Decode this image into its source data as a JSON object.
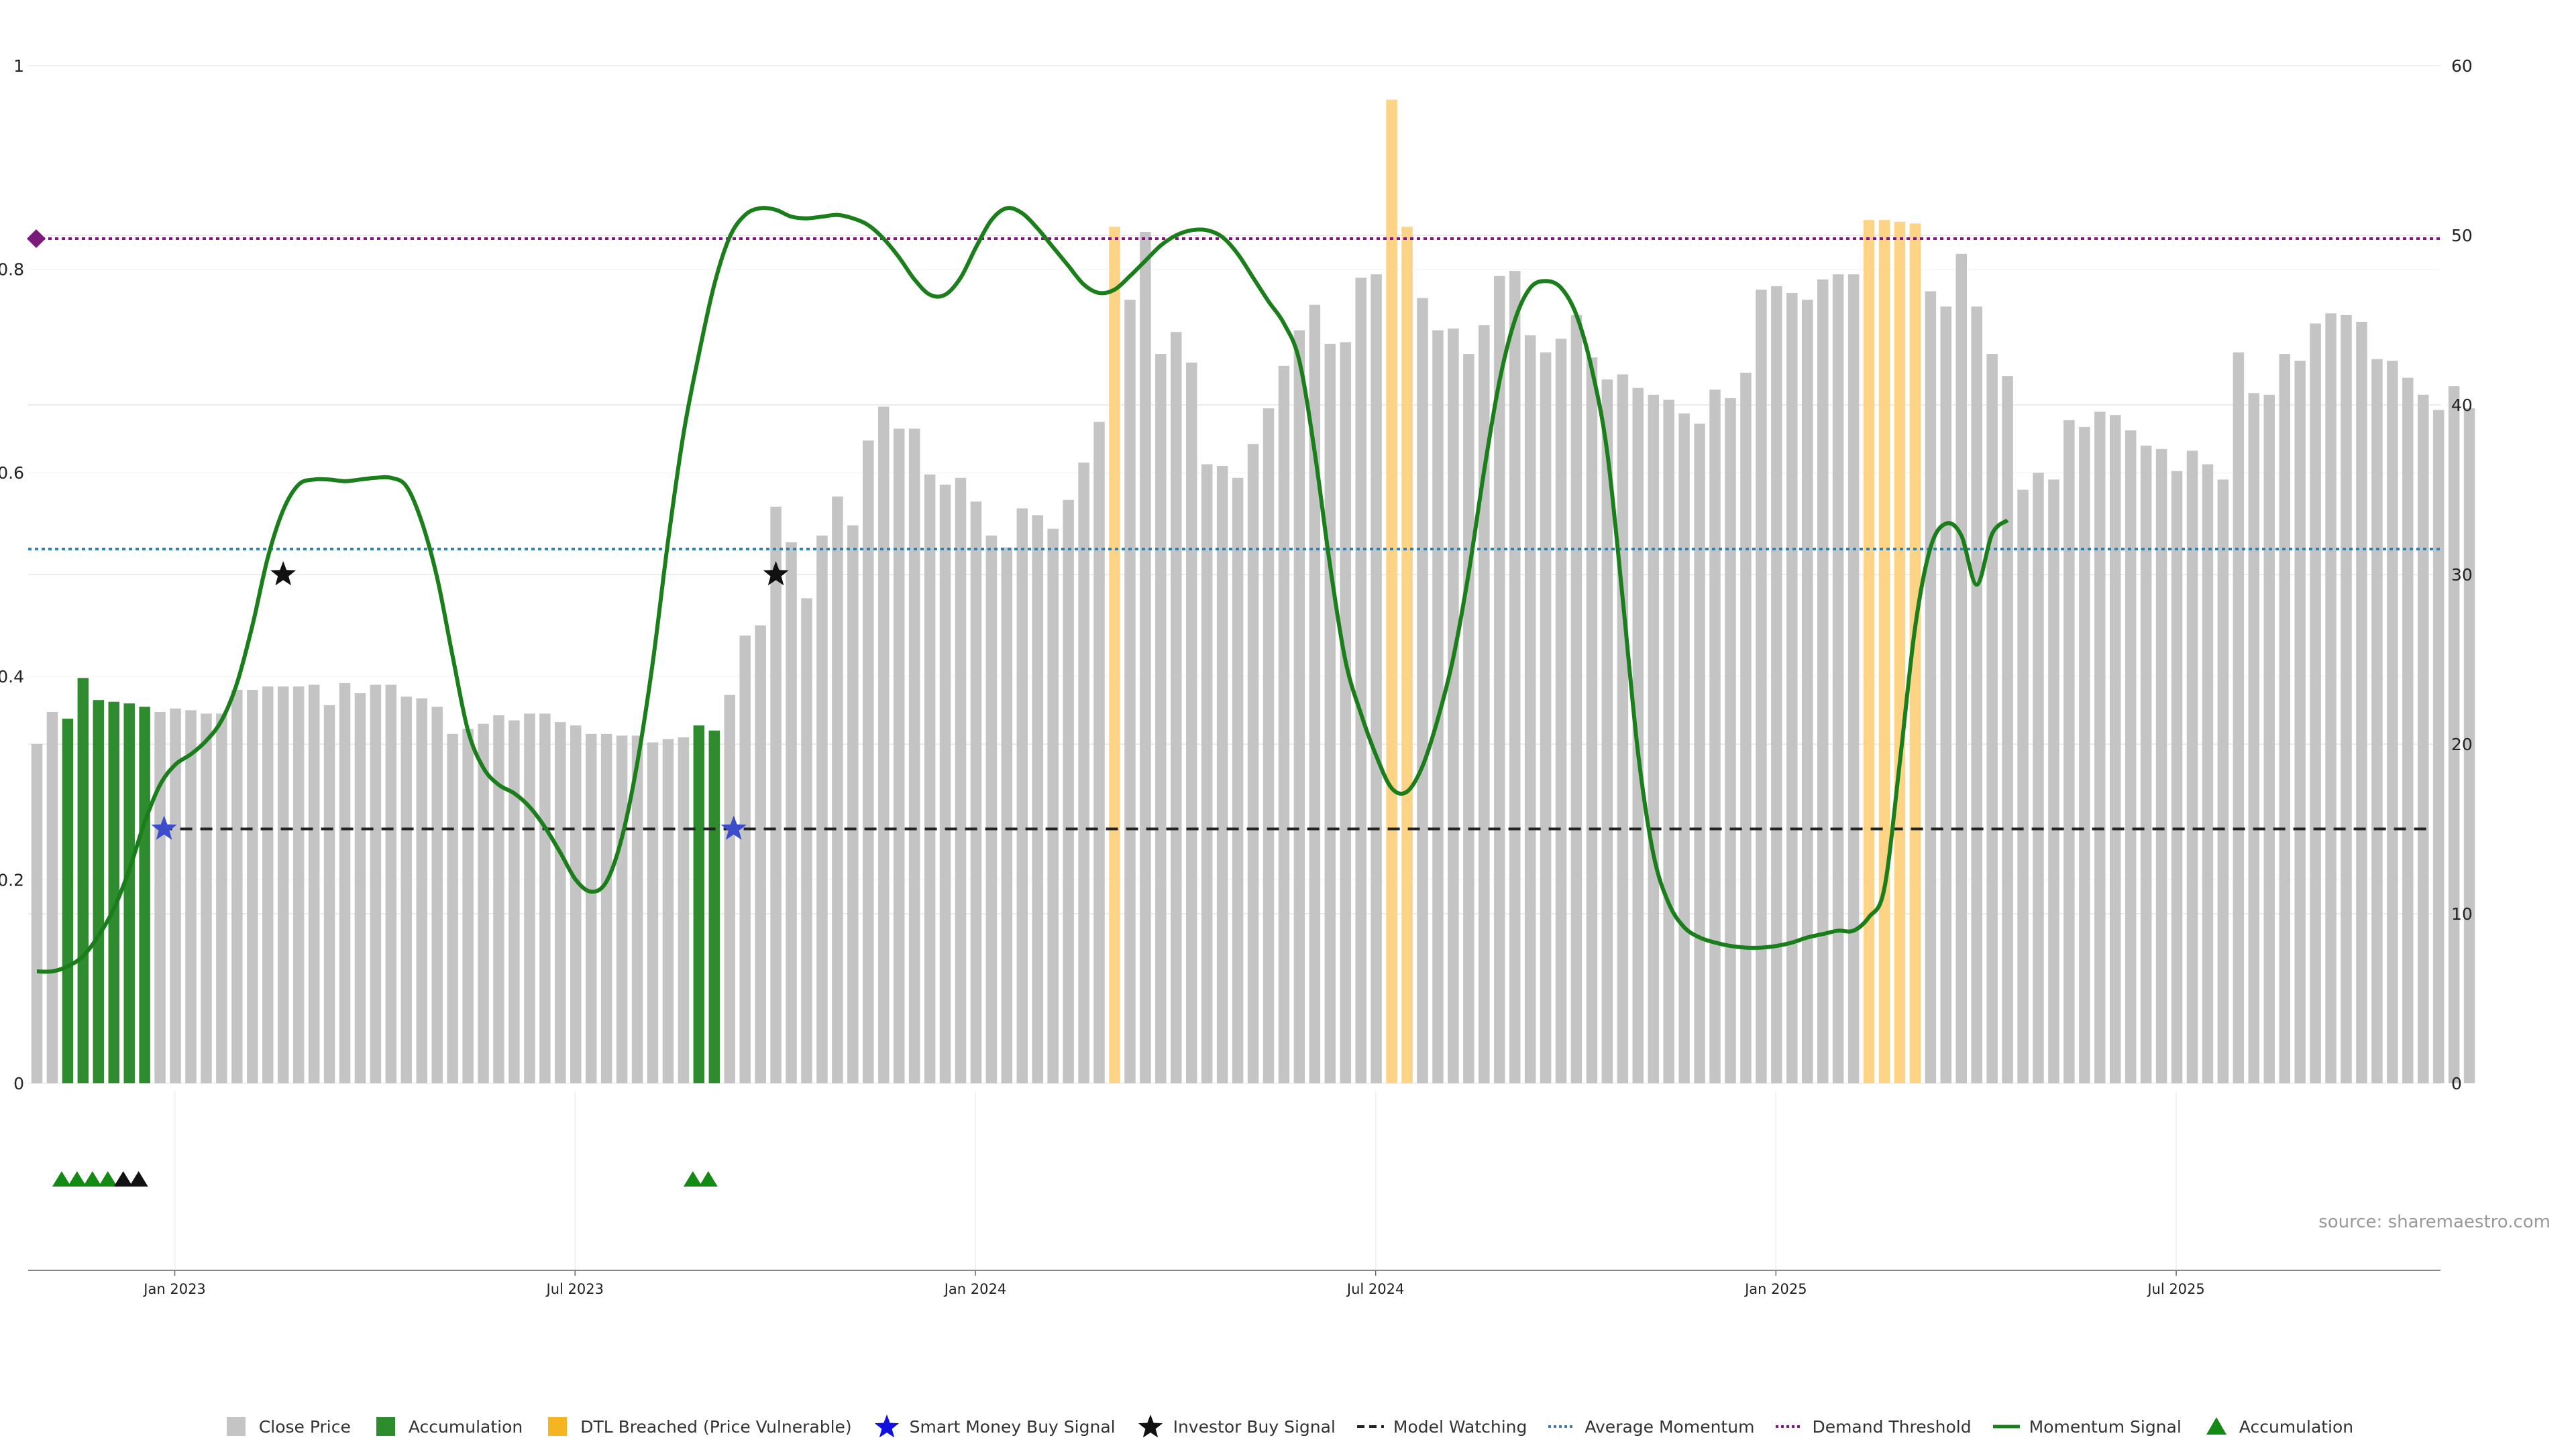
{
  "colors": {
    "close": "#c4c4c4",
    "accumulation": "#2e8b2e",
    "dtl": "#fdd386",
    "momentum": "#1a7f1a",
    "model": "#222222",
    "average": "#3d7ea6",
    "demand": "#7b1a7b",
    "smart_money": "#3c4dcc",
    "investor": "#111111"
  },
  "source": "source: sharemaestro.com",
  "legend": [
    {
      "label": "Close Price",
      "icon": "gray-square-icon"
    },
    {
      "label": "Accumulation",
      "icon": "green-square-icon"
    },
    {
      "label": "DTL Breached (Price Vulnerable)",
      "icon": "orange-square-icon"
    },
    {
      "label": "Smart Money Buy Signal",
      "icon": "blue-star-icon"
    },
    {
      "label": "Investor Buy Signal",
      "icon": "black-star-icon"
    },
    {
      "label": "Model Watching",
      "icon": "dashed-line-icon"
    },
    {
      "label": "Average Momentum",
      "icon": "dotted-blue-line-icon"
    },
    {
      "label": "Demand Threshold",
      "icon": "dotted-purple-line-icon"
    },
    {
      "label": "Momentum Signal",
      "icon": "green-line-icon"
    },
    {
      "label": "Accumulation",
      "icon": "green-triangle-icon"
    }
  ],
  "chart_data": {
    "type": "bar",
    "y_left": {
      "ticks": [
        "0",
        "0.2",
        "0.4",
        "0.6",
        "0.8",
        "1"
      ],
      "ylim": [
        0,
        1
      ]
    },
    "y_right": {
      "ticks": [
        "0",
        "10",
        "20",
        "30",
        "40",
        "50",
        "60"
      ],
      "ylim": [
        0,
        60
      ]
    },
    "x_ticks": [
      "Jan 2023",
      "Jul 2023",
      "Jan 2024",
      "Jul 2024",
      "Jan 2025",
      "Jul 2025"
    ],
    "x_tick_bar_index": [
      9,
      35,
      61,
      87,
      113,
      139
    ],
    "close_price": [
      20.0,
      21.9,
      21.5,
      23.9,
      22.6,
      22.5,
      22.4,
      22.2,
      21.9,
      22.1,
      22.0,
      21.8,
      21.8,
      23.2,
      23.2,
      23.4,
      23.4,
      23.4,
      23.5,
      22.3,
      23.6,
      23.0,
      23.5,
      23.5,
      22.8,
      22.7,
      22.2,
      20.6,
      20.9,
      21.2,
      21.7,
      21.4,
      21.8,
      21.8,
      21.3,
      21.1,
      20.6,
      20.6,
      20.5,
      20.5,
      20.1,
      20.3,
      20.4,
      21.1,
      20.8,
      22.9,
      26.4,
      27.0,
      34.0,
      31.9,
      28.6,
      32.3,
      34.6,
      32.9,
      37.9,
      39.9,
      38.6,
      38.6,
      35.9,
      35.3,
      35.7,
      34.3,
      32.3,
      31.6,
      33.9,
      33.5,
      32.7,
      34.4,
      36.6,
      39.0,
      50.5,
      46.2,
      50.2,
      43.0,
      44.3,
      42.5,
      36.5,
      36.4,
      35.7,
      37.7,
      39.8,
      42.3,
      44.4,
      45.9,
      43.6,
      43.7,
      47.5,
      47.7,
      58.0,
      50.5,
      46.3,
      44.4,
      44.5,
      43.0,
      44.7,
      47.6,
      47.9,
      44.1,
      43.1,
      43.9,
      45.3,
      42.8,
      41.5,
      41.8,
      41.0,
      40.6,
      40.3,
      39.5,
      38.9,
      40.9,
      40.4,
      41.9,
      46.8,
      47.0,
      46.6,
      46.2,
      47.4,
      47.7,
      47.7,
      50.9,
      50.9,
      50.8,
      50.7,
      46.7,
      45.8,
      48.9,
      45.8,
      43.0,
      41.7,
      35.0,
      36.0,
      35.6,
      39.1,
      38.7,
      39.6,
      39.4,
      38.5,
      37.6,
      37.4,
      36.1,
      37.3,
      36.5,
      35.6,
      43.1,
      40.7,
      40.6,
      43.0,
      42.6,
      44.8,
      45.4,
      45.3,
      44.9,
      42.7,
      42.6,
      41.6,
      40.6,
      39.7,
      41.1,
      39.8
    ],
    "accumulation_bars": [
      2,
      3,
      4,
      5,
      6,
      7,
      43,
      44
    ],
    "dtl_bars": [
      70,
      88,
      89,
      119,
      120,
      121,
      122
    ],
    "momentum_right": [
      6.6,
      6.6,
      6.9,
      7.5,
      8.7,
      10.3,
      12.6,
      15.4,
      17.6,
      18.8,
      19.4,
      20.2,
      21.4,
      23.6,
      27.0,
      31.0,
      33.8,
      35.3,
      35.6,
      35.6,
      35.5,
      35.6,
      35.7,
      35.7,
      35.2,
      33.1,
      29.8,
      25.2,
      20.8,
      18.6,
      17.6,
      17.1,
      16.3,
      15.1,
      13.6,
      12.0,
      11.3,
      11.9,
      14.5,
      18.9,
      24.8,
      32.0,
      38.3,
      43.0,
      47.1,
      49.9,
      51.2,
      51.6,
      51.5,
      51.1,
      51.0,
      51.1,
      51.2,
      51.0,
      50.6,
      49.8,
      48.7,
      47.4,
      46.5,
      46.5,
      47.5,
      49.3,
      50.9,
      51.6,
      51.3,
      50.4,
      49.3,
      48.2,
      47.1,
      46.6,
      46.8,
      47.6,
      48.5,
      49.4,
      50.0,
      50.3,
      50.3,
      49.9,
      48.9,
      47.5,
      46.1,
      44.8,
      42.6,
      37.2,
      30.5,
      24.9,
      21.8,
      19.3,
      17.4,
      17.2,
      18.7,
      21.5,
      25.1,
      30.1,
      36.1,
      41.4,
      45.0,
      46.9,
      47.3,
      46.9,
      45.3,
      42.1,
      37.2,
      28.6,
      19.5,
      13.5,
      10.6,
      9.2,
      8.6,
      8.3,
      8.1,
      8.0,
      8.0,
      8.1,
      8.3,
      8.6,
      8.8,
      9.0,
      9.0,
      9.8,
      11.5,
      18.9,
      26.9,
      31.6,
      33.0,
      32.3,
      29.4,
      32.4,
      33.2
    ],
    "momentum_start_index": 0,
    "model_watching_left": 0.25,
    "model_watching_start_index": 8,
    "average_momentum_left": 0.525,
    "demand_threshold_left": 0.83,
    "smart_money_signals": [
      {
        "bar": 8,
        "y_left": 0.25
      },
      {
        "bar": 45,
        "y_left": 0.25
      }
    ],
    "investor_signals": [
      {
        "bar": 16,
        "y_left": 0.5
      },
      {
        "bar": 48,
        "y_left": 0.5
      }
    ],
    "accumulation_triangles": [
      {
        "bar": 2,
        "color": "green"
      },
      {
        "bar": 3,
        "color": "green"
      },
      {
        "bar": 4,
        "color": "green"
      },
      {
        "bar": 5,
        "color": "green"
      },
      {
        "bar": 6,
        "color": "black"
      },
      {
        "bar": 7,
        "color": "black"
      },
      {
        "bar": 43,
        "color": "green"
      },
      {
        "bar": 44,
        "color": "green"
      }
    ]
  }
}
